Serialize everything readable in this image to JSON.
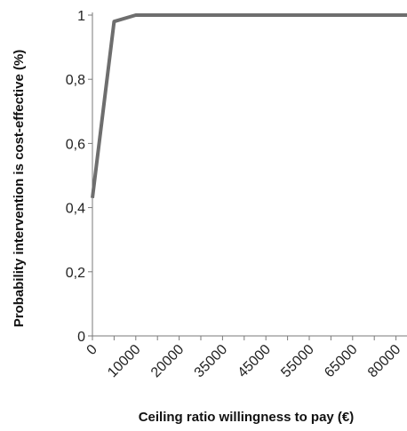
{
  "chart_data": {
    "type": "line",
    "title": "",
    "xlabel": "Ceiling ratio willingness to pay (€)",
    "ylabel": "Probability intervention is cost-effective (%)",
    "x_tick_labels": [
      "0",
      "10000",
      "20000",
      "35000",
      "45000",
      "55000",
      "65000",
      "80000"
    ],
    "y_tick_labels": [
      "0",
      "0,2",
      "0,4",
      "0,6",
      "0,8",
      "1"
    ],
    "ylim": [
      0,
      1
    ],
    "grid": false,
    "legend": "none",
    "series": [
      {
        "color": "#6e6e6e",
        "x_index": [
          0,
          1,
          2,
          3,
          4,
          5,
          6,
          7,
          8,
          9,
          10,
          11,
          12,
          13,
          14,
          15,
          16,
          17
        ],
        "values": [
          0.43,
          0.98,
          1.0,
          1.0,
          1.0,
          1.0,
          1.0,
          1.0,
          1.0,
          1.0,
          1.0,
          1.0,
          1.0,
          1.0,
          1.0,
          1.0,
          1.0,
          1.0
        ]
      }
    ]
  }
}
